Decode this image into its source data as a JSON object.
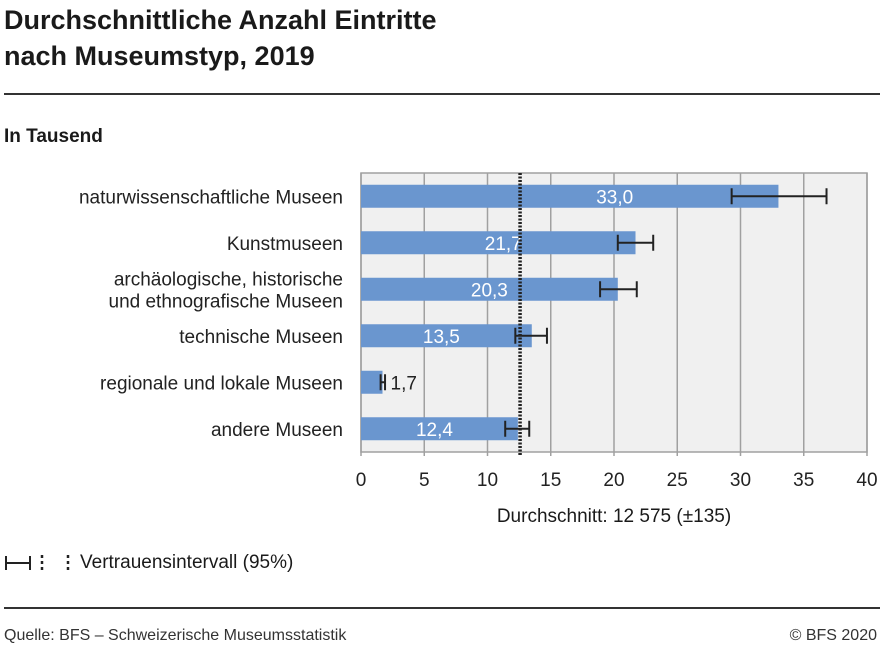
{
  "title_line1": "Durchschnittliche Anzahl Eintritte",
  "title_line2": "nach Museumstyp, 2019",
  "chart_data": {
    "type": "bar",
    "orientation": "horizontal",
    "title": "Durchschnittliche Anzahl Eintritte nach Museumstyp, 2019",
    "subtitle": "In Tausend",
    "categories": [
      [
        "naturwissenschaftliche Museen"
      ],
      [
        "Kunstmuseen"
      ],
      [
        "archäologische, historische",
        "und ethnografische Museen"
      ],
      [
        "technische Museen"
      ],
      [
        "regionale und lokale Museen"
      ],
      [
        "andere Museen"
      ]
    ],
    "values": [
      33.0,
      21.7,
      20.3,
      13.5,
      1.7,
      12.4
    ],
    "value_labels": [
      "33,0",
      "21,7",
      "20,3",
      "13,5",
      "1,7",
      "12,4"
    ],
    "ci_low": [
      29.3,
      20.3,
      18.9,
      12.2,
      1.55,
      11.4
    ],
    "ci_high": [
      36.8,
      23.1,
      21.8,
      14.7,
      1.9,
      13.3
    ],
    "average": 12.575,
    "average_label": "Durchschnitt: 12 575 (±135)",
    "xlim": [
      0,
      40
    ],
    "xticks": [
      0,
      5,
      10,
      15,
      20,
      25,
      30,
      35,
      40
    ],
    "grid": true,
    "bar_color": "#6a96cf",
    "plot_bg": "#f0f0f0"
  },
  "legend": {
    "label": "Vertrauensintervall (95%)"
  },
  "footer": {
    "source": "Quelle: BFS – Schweizerische Museumsstatistik",
    "copyright": "© BFS 2020"
  }
}
